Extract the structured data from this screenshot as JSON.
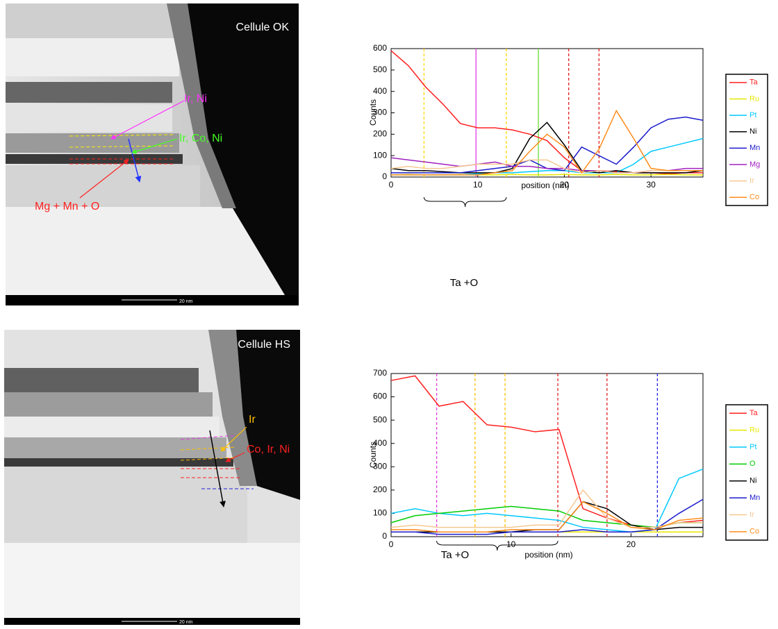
{
  "images": [
    {
      "caption": "Cellule OK",
      "labels": [
        "Ir, Ni",
        "Ir, Co, Ni",
        "Mg + Mn + O"
      ],
      "scale": "20 nm"
    },
    {
      "caption": "Cellule HS",
      "labels": [
        "Ir",
        "Co, Ir, Ni"
      ],
      "scale": "20 nm"
    }
  ],
  "chart_data": [
    {
      "type": "line",
      "x_label": "position (nm)",
      "y_label": "Counts",
      "x": [
        0,
        2,
        4,
        6,
        8,
        10,
        12,
        14,
        16,
        18,
        20,
        22,
        24,
        26,
        28,
        30,
        32,
        34,
        36
      ],
      "xlim": [
        0,
        36
      ],
      "xticks": [
        0,
        10,
        20,
        30
      ],
      "ylim": [
        0,
        600
      ],
      "yticks": [
        0,
        100,
        200,
        300,
        400,
        500,
        600
      ],
      "series": [
        {
          "name": "Ta",
          "color": "#ff2020",
          "values": [
            590,
            520,
            420,
            340,
            250,
            230,
            230,
            220,
            200,
            170,
            90,
            30,
            30,
            25,
            20,
            20,
            15,
            20,
            20
          ]
        },
        {
          "name": "Ru",
          "color": "#e8e800",
          "values": [
            10,
            12,
            10,
            10,
            12,
            10,
            10,
            12,
            10,
            10,
            12,
            10,
            10,
            12,
            10,
            10,
            12,
            10,
            10
          ]
        },
        {
          "name": "Pt",
          "color": "#00c8ff",
          "values": [
            10,
            10,
            10,
            10,
            10,
            15,
            20,
            20,
            25,
            30,
            30,
            20,
            20,
            20,
            60,
            120,
            140,
            160,
            180
          ]
        },
        {
          "name": "Ni",
          "color": "#000000",
          "values": [
            40,
            30,
            30,
            25,
            20,
            20,
            20,
            40,
            180,
            255,
            150,
            30,
            20,
            30,
            20,
            20,
            20,
            20,
            30
          ]
        },
        {
          "name": "Mn",
          "color": "#1a1acc",
          "values": [
            20,
            20,
            20,
            20,
            20,
            30,
            40,
            50,
            80,
            40,
            30,
            140,
            100,
            60,
            140,
            230,
            270,
            280,
            265
          ]
        },
        {
          "name": "Mg",
          "color": "#a020c0",
          "values": [
            90,
            80,
            70,
            60,
            50,
            60,
            70,
            50,
            50,
            40,
            40,
            30,
            30,
            20,
            20,
            30,
            30,
            40,
            40
          ]
        },
        {
          "name": "Ir",
          "color": "#f5c890",
          "values": [
            40,
            50,
            40,
            40,
            50,
            60,
            60,
            60,
            80,
            80,
            40,
            20,
            30,
            20,
            20,
            30,
            30,
            30,
            30
          ]
        },
        {
          "name": "Co",
          "color": "#ff8c1a",
          "values": [
            10,
            10,
            10,
            10,
            10,
            10,
            20,
            30,
            120,
            200,
            140,
            20,
            130,
            310,
            180,
            40,
            30,
            30,
            30
          ]
        }
      ],
      "vlines": [
        {
          "x": 3.8,
          "color": "#ffd700",
          "dashed": true
        },
        {
          "x": 9.8,
          "color": "#e040e0",
          "dashed": false
        },
        {
          "x": 13.3,
          "color": "#ffd700",
          "dashed": true
        },
        {
          "x": 17,
          "color": "#66dd33",
          "dashed": false
        },
        {
          "x": 20.5,
          "color": "#e02020",
          "dashed": true
        },
        {
          "x": 24,
          "color": "#e02020",
          "dashed": true
        }
      ],
      "brace": {
        "from": 3.8,
        "to": 13.3,
        "label": "Ta +O"
      }
    },
    {
      "type": "line",
      "x_label": "position (nm)",
      "y_label": "Counts",
      "x": [
        0,
        2,
        4,
        6,
        8,
        10,
        12,
        14,
        16,
        18,
        20,
        22,
        24,
        26
      ],
      "xlim": [
        0,
        26
      ],
      "xticks": [
        0,
        10,
        20
      ],
      "ylim": [
        0,
        700
      ],
      "yticks": [
        0,
        100,
        200,
        300,
        400,
        500,
        600,
        700
      ],
      "series": [
        {
          "name": "Ta",
          "color": "#ff2020",
          "values": [
            670,
            690,
            560,
            580,
            480,
            470,
            450,
            460,
            120,
            80,
            50,
            40,
            60,
            70
          ]
        },
        {
          "name": "Ru",
          "color": "#e8e800",
          "values": [
            20,
            20,
            20,
            20,
            20,
            20,
            20,
            20,
            20,
            20,
            20,
            20,
            20,
            20
          ]
        },
        {
          "name": "Pt",
          "color": "#00c8ff",
          "values": [
            100,
            120,
            100,
            90,
            100,
            90,
            80,
            70,
            40,
            30,
            20,
            30,
            250,
            290
          ]
        },
        {
          "name": "O",
          "color": "#00cc00",
          "values": [
            60,
            90,
            100,
            110,
            120,
            130,
            120,
            110,
            70,
            60,
            50,
            40,
            60,
            60
          ]
        },
        {
          "name": "Ni",
          "color": "#000000",
          "values": [
            20,
            20,
            20,
            20,
            20,
            20,
            30,
            30,
            150,
            120,
            50,
            30,
            40,
            40
          ]
        },
        {
          "name": "Mn",
          "color": "#1a1acc",
          "values": [
            20,
            20,
            10,
            10,
            10,
            20,
            20,
            20,
            30,
            20,
            20,
            30,
            100,
            160
          ]
        },
        {
          "name": "Ir",
          "color": "#f5c890",
          "values": [
            40,
            50,
            40,
            40,
            40,
            40,
            50,
            50,
            200,
            80,
            40,
            40,
            60,
            60
          ]
        },
        {
          "name": "Co",
          "color": "#ff8c1a",
          "values": [
            30,
            30,
            20,
            20,
            20,
            30,
            30,
            30,
            150,
            100,
            40,
            30,
            70,
            80
          ]
        }
      ],
      "vlines": [
        {
          "x": 3.8,
          "color": "#e040e0",
          "dashed": true
        },
        {
          "x": 7,
          "color": "#ffc000",
          "dashed": true
        },
        {
          "x": 9.5,
          "color": "#ffc000",
          "dashed": true
        },
        {
          "x": 13.9,
          "color": "#e02020",
          "dashed": true
        },
        {
          "x": 18,
          "color": "#e02020",
          "dashed": true
        },
        {
          "x": 22.2,
          "color": "#2020dd",
          "dashed": true
        }
      ],
      "brace": {
        "from": 3.8,
        "to": 13.9,
        "label": "Ta +O"
      }
    }
  ]
}
